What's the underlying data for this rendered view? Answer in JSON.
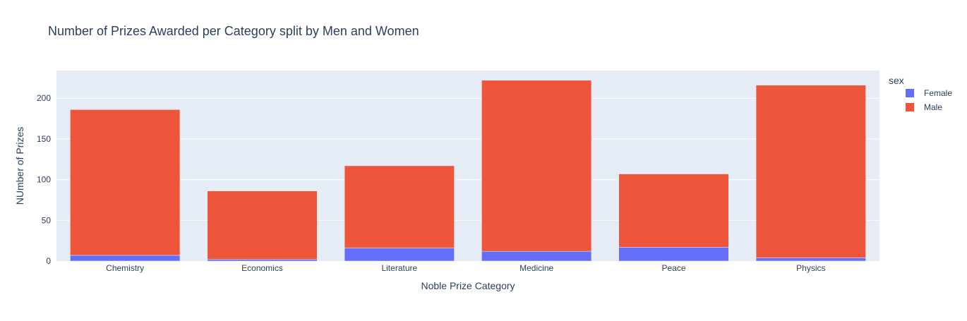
{
  "chart_data": {
    "type": "bar",
    "barmode": "stack",
    "title": "Number of Prizes Awarded per Category split by Men and Women",
    "xlabel": "Noble Prize Category",
    "ylabel": "NUmber of Prizes",
    "categories": [
      "Chemistry",
      "Economics",
      "Literature",
      "Medicine",
      "Peace",
      "Physics"
    ],
    "series": [
      {
        "name": "Female",
        "color": "#636efa",
        "values": [
          7,
          2,
          16,
          12,
          17,
          4
        ]
      },
      {
        "name": "Male",
        "color": "#ef553b",
        "values": [
          179,
          84,
          101,
          210,
          90,
          212
        ]
      }
    ],
    "ylim": [
      0,
      234
    ],
    "yticks": [
      0,
      50,
      100,
      150,
      200
    ],
    "grid": true,
    "plot_background": "#e5ecf6",
    "legend": {
      "title": "sex",
      "placement": "right"
    }
  }
}
